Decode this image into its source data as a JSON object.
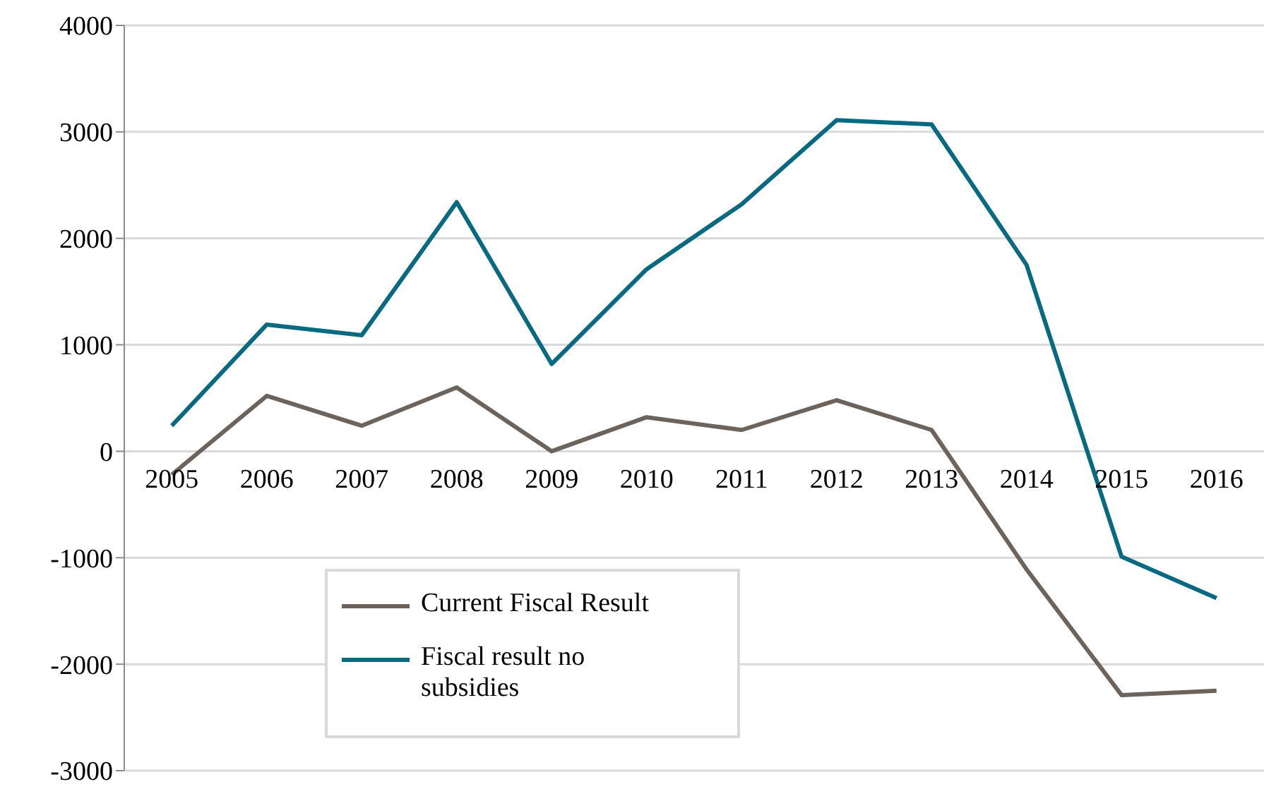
{
  "chart_data": {
    "type": "line",
    "categories": [
      "2005",
      "2006",
      "2007",
      "2008",
      "2009",
      "2010",
      "2011",
      "2012",
      "2013",
      "2014",
      "2015",
      "2016"
    ],
    "series": [
      {
        "name": "Current Fiscal Result",
        "color": "#6b635c",
        "values": [
          -220,
          520,
          240,
          600,
          0,
          320,
          200,
          480,
          200,
          -1110,
          -2290,
          -2250
        ]
      },
      {
        "name": "Fiscal result no subsidies",
        "color": "#086a80",
        "values": [
          240,
          1190,
          1090,
          2340,
          820,
          1710,
          2320,
          3110,
          3070,
          1750,
          -990,
          -1380
        ]
      }
    ],
    "ylim": [
      -3000,
      4000
    ],
    "yticks": [
      -3000,
      -2000,
      -1000,
      0,
      1000,
      2000,
      3000,
      4000
    ],
    "grid": "y",
    "legend": "bottom left",
    "marker": "none",
    "line_style": "solid"
  }
}
